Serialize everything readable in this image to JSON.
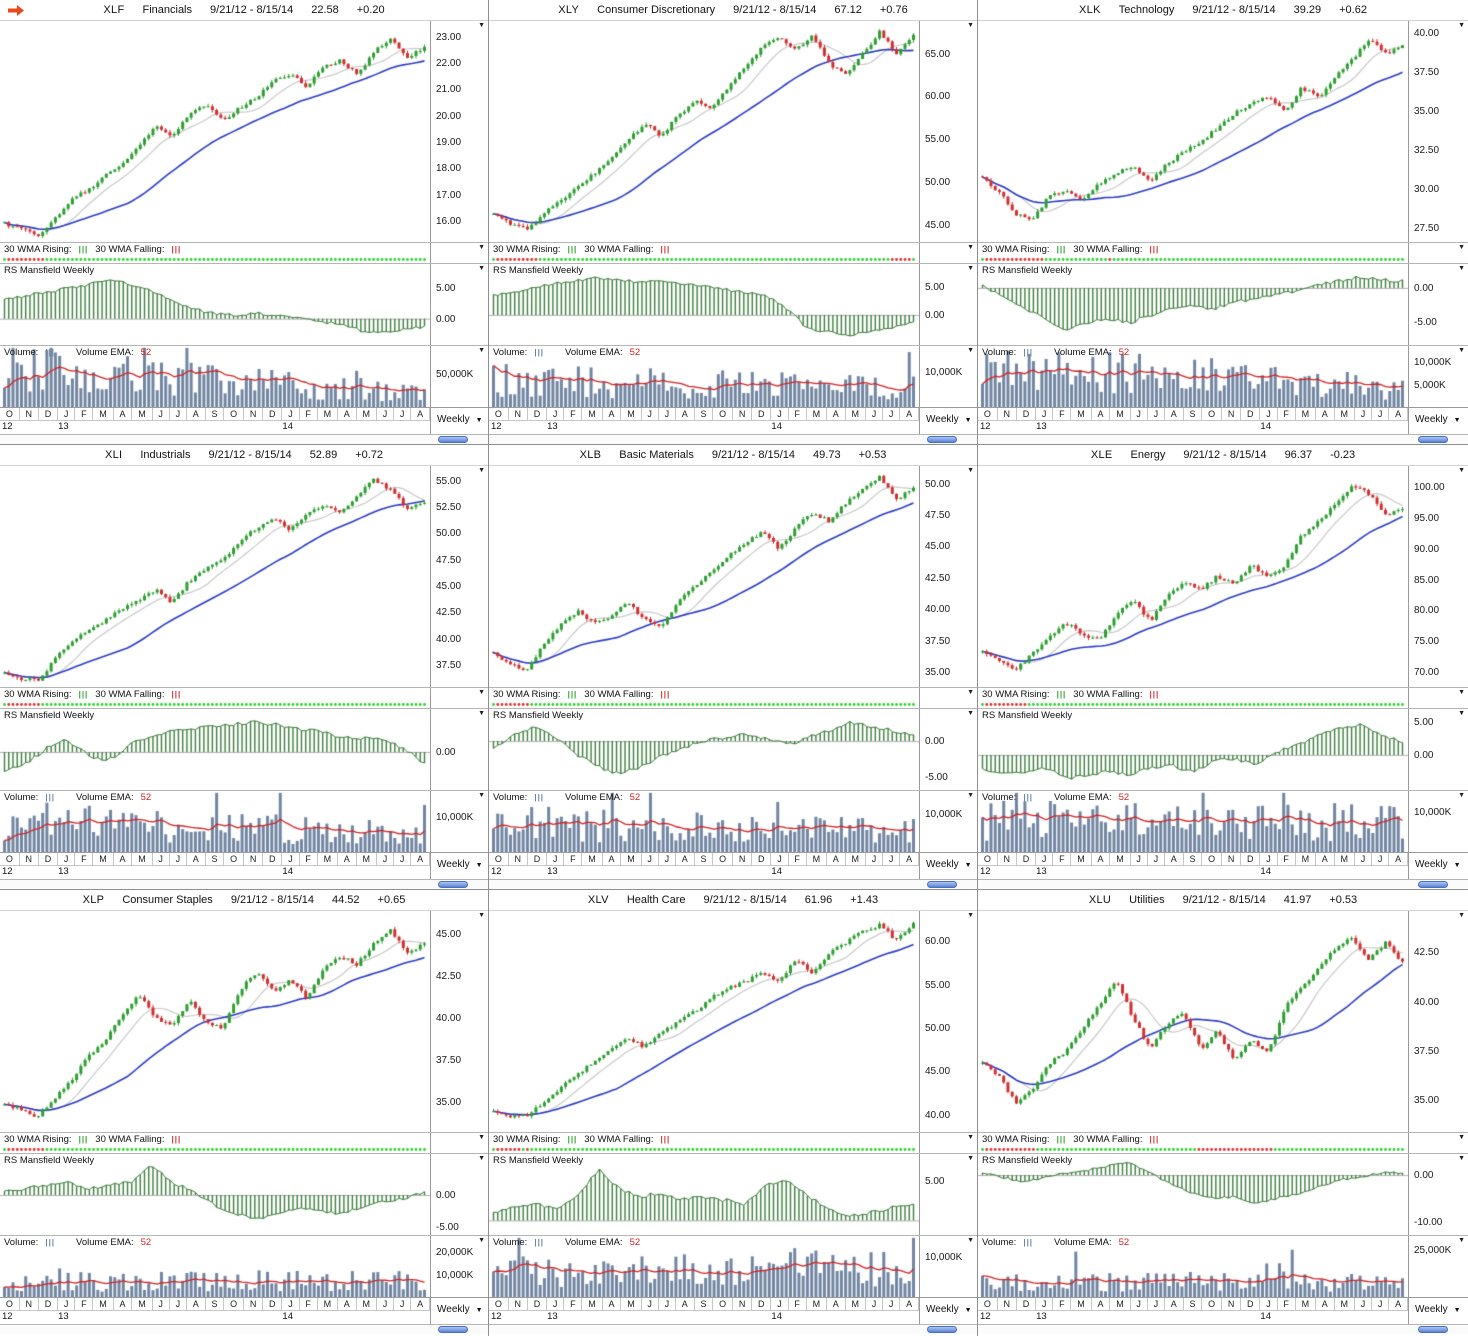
{
  "app": {
    "wma_rising_label": "30 WMA Rising:",
    "wma_falling_label": "30 WMA Falling:",
    "rs_label": "RS Mansfield Weekly",
    "volume_label": "Volume:",
    "volume_ema_label": "Volume EMA:",
    "volume_ema_value": "52",
    "weekly_label": "Weekly"
  },
  "icons": {
    "dropdown": "▼",
    "hash": "|||"
  },
  "colors": {
    "up": "#2f9e33",
    "down": "#d03030",
    "ma10": "#c9c9c9",
    "ma30": "#2a3cc4",
    "rs": "#3f7d3f",
    "volume_bar": "#7286a2",
    "volume_ema": "#d42222",
    "dot_up": "#2fd12f",
    "dot_down": "#e03030",
    "accent_arrow": "#e8491d"
  },
  "meta": {
    "weeks": 100,
    "timeframe": "Weekly"
  },
  "x_axis": {
    "months": [
      "O",
      "N",
      "D",
      "J",
      "F",
      "M",
      "A",
      "M",
      "J",
      "J",
      "A",
      "S",
      "O",
      "N",
      "D",
      "J",
      "F",
      "M",
      "A",
      "M",
      "J",
      "J",
      "A"
    ],
    "years": [
      {
        "label": "12",
        "month_index": 0
      },
      {
        "label": "13",
        "month_index": 3
      },
      {
        "label": "14",
        "month_index": 15
      }
    ]
  },
  "chart_data": [
    {
      "type": "candlestick+volume",
      "ticker": "XLF",
      "name": "Financials",
      "date_range": "9/21/12 - 8/15/14",
      "price": "22.58",
      "change": "+0.20",
      "ylim": [
        15.2,
        23.6
      ],
      "y_ticks": [
        {
          "label": "23.00",
          "v": 23
        },
        {
          "label": "22.00",
          "v": 22
        },
        {
          "label": "21.00",
          "v": 21
        },
        {
          "label": "20.00",
          "v": 20
        },
        {
          "label": "19.00",
          "v": 19
        },
        {
          "label": "18.00",
          "v": 18
        },
        {
          "label": "17.00",
          "v": 17
        },
        {
          "label": "16.00",
          "v": 16
        }
      ],
      "close_anchors": [
        15.9,
        15.7,
        15.4,
        16.1,
        16.8,
        17.2,
        17.7,
        18.2,
        18.8,
        19.6,
        19.2,
        20.1,
        20.4,
        19.8,
        20.3,
        20.7,
        21.3,
        21.6,
        21.1,
        21.9,
        22.1,
        21.6,
        22.4,
        23.0,
        22.2,
        22.6
      ],
      "rs": {
        "ylim": [
          -4.5,
          9
        ],
        "ticks": [
          {
            "label": "5.00",
            "v": 5
          },
          {
            "label": "0.00",
            "v": 0
          }
        ],
        "anchors": [
          3.0,
          3.8,
          4.4,
          5.0,
          5.6,
          6.6,
          5.6,
          4.6,
          3.0,
          1.6,
          0.8,
          0.5,
          0.9,
          0.5,
          0.2,
          -0.4,
          -1.0,
          -2.0,
          -2.4,
          -1.8,
          -1.4
        ]
      },
      "volume": {
        "vmax": 90000,
        "base": 42000,
        "trend": [
          1.5,
          0.55
        ],
        "ticks": [
          {
            "label": "50,000K",
            "v": 50000
          }
        ]
      }
    },
    {
      "type": "candlestick+volume",
      "ticker": "XLY",
      "name": "Consumer Discretionary",
      "date_range": "9/21/12 - 8/15/14",
      "price": "67.12",
      "change": "+0.76",
      "ylim": [
        43.0,
        68.8
      ],
      "y_ticks": [
        {
          "label": "65.00",
          "v": 65
        },
        {
          "label": "60.00",
          "v": 60
        },
        {
          "label": "55.00",
          "v": 55
        },
        {
          "label": "50.00",
          "v": 50
        },
        {
          "label": "45.00",
          "v": 45
        }
      ],
      "close_anchors": [
        46.2,
        45.2,
        44.4,
        46.3,
        47.8,
        49.6,
        51.0,
        52.8,
        54.8,
        56.8,
        55.4,
        57.8,
        59.5,
        58.6,
        61.2,
        63.6,
        65.8,
        66.8,
        65.4,
        67.0,
        63.8,
        62.6,
        65.0,
        67.6,
        64.8,
        67.1
      ],
      "rs": {
        "ylim": [
          -5.5,
          9
        ],
        "ticks": [
          {
            "label": "5.00",
            "v": 5
          },
          {
            "label": "0.00",
            "v": 0
          }
        ],
        "anchors": [
          3.5,
          4.0,
          5.0,
          5.6,
          6.1,
          6.6,
          6.1,
          5.8,
          6.1,
          5.5,
          5.0,
          4.5,
          4.0,
          3.4,
          1.0,
          -2.6,
          -3.1,
          -3.6,
          -3.0,
          -2.4,
          -1.4
        ]
      },
      "volume": {
        "vmax": 17000,
        "base": 7500,
        "trend": [
          1.1,
          0.8
        ],
        "ticks": [
          {
            "label": "10,000K",
            "v": 10000
          }
        ]
      }
    },
    {
      "type": "candlestick+volume",
      "ticker": "XLK",
      "name": "Technology",
      "date_range": "9/21/12 - 8/15/14",
      "price": "39.29",
      "change": "+0.62",
      "ylim": [
        26.6,
        40.8
      ],
      "y_ticks": [
        {
          "label": "40.00",
          "v": 40
        },
        {
          "label": "37.50",
          "v": 37.5
        },
        {
          "label": "35.00",
          "v": 35
        },
        {
          "label": "32.50",
          "v": 32.5
        },
        {
          "label": "30.00",
          "v": 30
        },
        {
          "label": "27.50",
          "v": 27.5
        }
      ],
      "close_anchors": [
        30.8,
        29.8,
        28.4,
        28.0,
        29.6,
        29.9,
        29.3,
        30.4,
        31.0,
        31.5,
        30.5,
        31.6,
        32.4,
        33.1,
        33.9,
        34.9,
        35.5,
        35.9,
        35.0,
        36.5,
        35.9,
        37.2,
        38.3,
        39.6,
        38.7,
        39.3
      ],
      "rs": {
        "ylim": [
          -8.5,
          3.5
        ],
        "ticks": [
          {
            "label": "0.00",
            "v": 0
          },
          {
            "label": "-5.00",
            "v": -5
          }
        ],
        "anchors": [
          0.5,
          -1.5,
          -3.0,
          -4.6,
          -6.1,
          -5.1,
          -4.6,
          -5.1,
          -4.0,
          -3.0,
          -2.6,
          -3.1,
          -2.1,
          -1.6,
          -1.0,
          -0.5,
          0.5,
          1.0,
          1.6,
          1.2,
          1.0
        ]
      },
      "volume": {
        "vmax": 13500,
        "base": 7500,
        "trend": [
          1.35,
          0.6
        ],
        "ticks": [
          {
            "label": "10,000K",
            "v": 10000
          },
          {
            "label": "5,000K",
            "v": 5000
          }
        ]
      }
    },
    {
      "type": "candlestick+volume",
      "ticker": "XLI",
      "name": "Industrials",
      "date_range": "9/21/12 - 8/15/14",
      "price": "52.89",
      "change": "+0.72",
      "ylim": [
        35.4,
        56.4
      ],
      "y_ticks": [
        {
          "label": "55.00",
          "v": 55
        },
        {
          "label": "52.50",
          "v": 52.5
        },
        {
          "label": "50.00",
          "v": 50
        },
        {
          "label": "47.50",
          "v": 47.5
        },
        {
          "label": "45.00",
          "v": 45
        },
        {
          "label": "42.50",
          "v": 42.5
        },
        {
          "label": "40.00",
          "v": 40
        },
        {
          "label": "37.50",
          "v": 37.5
        }
      ],
      "close_anchors": [
        36.8,
        36.2,
        36.0,
        38.0,
        39.8,
        40.8,
        41.7,
        42.8,
        43.6,
        44.7,
        43.4,
        45.5,
        46.7,
        47.5,
        49.3,
        50.5,
        51.5,
        50.3,
        51.9,
        52.7,
        52.0,
        53.5,
        55.1,
        54.1,
        52.3,
        52.9
      ],
      "rs": {
        "ylim": [
          -5,
          5.5
        ],
        "ticks": [
          {
            "label": "0.00",
            "v": 0
          }
        ],
        "anchors": [
          -2.6,
          -1.6,
          0.5,
          1.6,
          -0.5,
          -1.0,
          1.0,
          2.0,
          2.6,
          3.0,
          3.2,
          3.6,
          3.8,
          3.5,
          3.0,
          2.6,
          2.0,
          1.8,
          1.5,
          0.5,
          -1.6
        ]
      },
      "volume": {
        "vmax": 17000,
        "base": 7500,
        "trend": [
          1.3,
          0.75
        ],
        "ticks": [
          {
            "label": "10,000K",
            "v": 10000
          }
        ]
      }
    },
    {
      "type": "candlestick+volume",
      "ticker": "XLB",
      "name": "Basic Materials",
      "date_range": "9/21/12 - 8/15/14",
      "price": "49.73",
      "change": "+0.53",
      "ylim": [
        33.8,
        51.4
      ],
      "y_ticks": [
        {
          "label": "50.00",
          "v": 50
        },
        {
          "label": "47.50",
          "v": 47.5
        },
        {
          "label": "45.00",
          "v": 45
        },
        {
          "label": "42.50",
          "v": 42.5
        },
        {
          "label": "40.00",
          "v": 40
        },
        {
          "label": "37.50",
          "v": 37.5
        },
        {
          "label": "35.00",
          "v": 35
        }
      ],
      "close_anchors": [
        36.6,
        35.6,
        35.1,
        37.2,
        38.7,
        39.9,
        38.8,
        39.5,
        40.5,
        39.2,
        38.6,
        40.7,
        41.9,
        42.9,
        44.3,
        45.3,
        46.1,
        44.8,
        46.5,
        47.7,
        47.0,
        48.5,
        49.7,
        50.5,
        48.7,
        49.7
      ],
      "rs": {
        "ylim": [
          -7,
          4.5
        ],
        "ticks": [
          {
            "label": "0.00",
            "v": 0
          },
          {
            "label": "-5.00",
            "v": -5
          }
        ],
        "anchors": [
          -1.0,
          1.0,
          2.0,
          0.5,
          -2.0,
          -3.6,
          -4.6,
          -3.6,
          -2.0,
          -1.0,
          0.0,
          0.5,
          1.0,
          0.3,
          -0.5,
          0.5,
          1.5,
          2.6,
          2.0,
          1.5,
          1.0
        ]
      },
      "volume": {
        "vmax": 16000,
        "base": 7500,
        "trend": [
          1.15,
          0.8
        ],
        "ticks": [
          {
            "label": "10,000K",
            "v": 10000
          }
        ]
      }
    },
    {
      "type": "candlestick+volume",
      "ticker": "XLE",
      "name": "Energy",
      "date_range": "9/21/12 - 8/15/14",
      "price": "96.37",
      "change": "-0.23",
      "ylim": [
        67.5,
        103.5
      ],
      "y_ticks": [
        {
          "label": "100.00",
          "v": 100
        },
        {
          "label": "95.00",
          "v": 95
        },
        {
          "label": "90.00",
          "v": 90
        },
        {
          "label": "85.00",
          "v": 85
        },
        {
          "label": "80.00",
          "v": 80
        },
        {
          "label": "75.00",
          "v": 75
        },
        {
          "label": "70.00",
          "v": 70
        }
      ],
      "close_anchors": [
        73.5,
        71.5,
        70.3,
        73.0,
        75.6,
        77.9,
        76.0,
        75.1,
        79.6,
        81.6,
        78.2,
        82.6,
        84.6,
        83.4,
        85.6,
        84.1,
        87.6,
        85.2,
        87.2,
        92.2,
        94.6,
        97.2,
        100.2,
        99.0,
        95.4,
        96.4
      ],
      "rs": {
        "ylim": [
          -5.5,
          7
        ],
        "ticks": [
          {
            "label": "5.00",
            "v": 5
          },
          {
            "label": "0.00",
            "v": 0
          }
        ],
        "anchors": [
          -2.0,
          -3.0,
          -2.6,
          -2.0,
          -3.6,
          -3.0,
          -2.6,
          -3.0,
          -2.0,
          -1.6,
          -2.6,
          -1.0,
          -0.5,
          -1.6,
          0.5,
          1.5,
          3.0,
          4.0,
          4.6,
          3.0,
          2.0
        ]
      },
      "volume": {
        "vmax": 15000,
        "base": 8500,
        "trend": [
          1.0,
          0.95
        ],
        "ticks": [
          {
            "label": "10,000K",
            "v": 10000
          }
        ]
      }
    },
    {
      "type": "candlestick+volume",
      "ticker": "XLP",
      "name": "Consumer Staples",
      "date_range": "9/21/12 - 8/15/14",
      "price": "44.52",
      "change": "+0.65",
      "ylim": [
        33.2,
        46.4
      ],
      "y_ticks": [
        {
          "label": "45.00",
          "v": 45
        },
        {
          "label": "42.50",
          "v": 42.5
        },
        {
          "label": "40.00",
          "v": 40
        },
        {
          "label": "37.50",
          "v": 37.5
        },
        {
          "label": "35.00",
          "v": 35
        }
      ],
      "close_anchors": [
        34.9,
        34.5,
        34.1,
        35.2,
        36.3,
        37.7,
        38.7,
        40.1,
        41.4,
        40.0,
        39.6,
        41.1,
        39.8,
        39.3,
        41.7,
        42.7,
        41.6,
        42.3,
        41.2,
        42.9,
        43.7,
        43.2,
        44.5,
        45.3,
        43.8,
        44.5
      ],
      "rs": {
        "ylim": [
          -6.5,
          6.5
        ],
        "ticks": [
          {
            "label": "0.00",
            "v": 0
          },
          {
            "label": "-5.00",
            "v": -5
          }
        ],
        "anchors": [
          0.5,
          1.0,
          1.6,
          2.0,
          1.0,
          1.6,
          2.0,
          4.6,
          2.0,
          0.5,
          -1.6,
          -3.0,
          -3.8,
          -3.0,
          -2.0,
          -2.6,
          -3.0,
          -2.0,
          -1.0,
          -0.5,
          0.5
        ]
      },
      "volume": {
        "vmax": 27000,
        "base": 8500,
        "trend": [
          0.9,
          1.0
        ],
        "ticks": [
          {
            "label": "20,000K",
            "v": 20000
          },
          {
            "label": "10,000K",
            "v": 10000
          }
        ]
      }
    },
    {
      "type": "candlestick+volume",
      "ticker": "XLV",
      "name": "Health Care",
      "date_range": "9/21/12 - 8/15/14",
      "price": "61.96",
      "change": "+1.43",
      "ylim": [
        38.0,
        63.5
      ],
      "y_ticks": [
        {
          "label": "60.00",
          "v": 60
        },
        {
          "label": "55.00",
          "v": 55
        },
        {
          "label": "50.00",
          "v": 50
        },
        {
          "label": "45.00",
          "v": 45
        },
        {
          "label": "40.00",
          "v": 40
        }
      ],
      "close_anchors": [
        40.2,
        39.7,
        39.9,
        41.5,
        43.0,
        44.7,
        46.1,
        47.5,
        48.7,
        47.8,
        49.5,
        50.7,
        51.9,
        53.5,
        54.7,
        55.3,
        56.5,
        55.2,
        57.9,
        56.4,
        58.7,
        59.9,
        61.1,
        61.9,
        60.1,
        62.0
      ],
      "rs": {
        "ylim": [
          -2,
          8.5
        ],
        "ticks": [
          {
            "label": "5.00",
            "v": 5
          }
        ],
        "anchors": [
          1.0,
          1.6,
          2.0,
          1.6,
          3.0,
          6.6,
          4.0,
          3.0,
          3.6,
          2.6,
          3.0,
          2.6,
          2.0,
          4.6,
          5.0,
          3.0,
          1.6,
          0.5,
          1.0,
          1.6,
          2.0
        ]
      },
      "volume": {
        "vmax": 15000,
        "base": 7800,
        "trend": [
          0.95,
          1.0
        ],
        "ticks": [
          {
            "label": "10,000K",
            "v": 10000
          }
        ]
      }
    },
    {
      "type": "candlestick+volume",
      "ticker": "XLU",
      "name": "Utilities",
      "date_range": "9/21/12 - 8/15/14",
      "price": "41.97",
      "change": "+0.53",
      "ylim": [
        33.4,
        44.6
      ],
      "y_ticks": [
        {
          "label": "42.50",
          "v": 42.5
        },
        {
          "label": "40.00",
          "v": 40
        },
        {
          "label": "37.50",
          "v": 37.5
        },
        {
          "label": "35.00",
          "v": 35
        }
      ],
      "close_anchors": [
        37.0,
        36.2,
        34.8,
        35.6,
        36.9,
        37.5,
        38.7,
        39.9,
        41.1,
        39.1,
        37.6,
        38.9,
        39.4,
        37.6,
        38.5,
        37.0,
        38.1,
        37.4,
        39.7,
        40.7,
        41.7,
        42.7,
        43.3,
        42.1,
        43.0,
        42.0
      ],
      "rs": {
        "ylim": [
          -13,
          4.5
        ],
        "ticks": [
          {
            "label": "0.00",
            "v": 0
          },
          {
            "label": "-10.00",
            "v": -10
          }
        ],
        "anchors": [
          0.5,
          -0.5,
          -1.6,
          -0.5,
          0.5,
          1.0,
          2.0,
          2.6,
          0.5,
          -2.0,
          -4.0,
          -5.0,
          -4.6,
          -6.1,
          -5.0,
          -4.0,
          -2.6,
          -1.0,
          -0.5,
          0.5,
          0.5
        ]
      },
      "volume": {
        "vmax": 32000,
        "base": 9500,
        "trend": [
          0.9,
          1.0
        ],
        "ticks": [
          {
            "label": "25,000K",
            "v": 25000
          }
        ]
      }
    }
  ]
}
